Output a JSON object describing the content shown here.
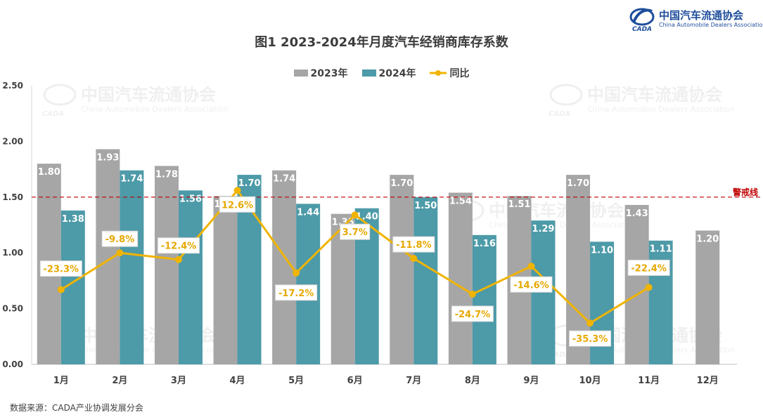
{
  "header": {
    "logo_cn": "中国汽车流通协会",
    "logo_en": "China Automobile Dealers Association",
    "title": "图1  2023-2024年月度汽车经销商库存系数"
  },
  "watermark": {
    "cn": "中国汽车流通协会",
    "en": "China Automobile Dealers Association",
    "mark": "CADA"
  },
  "footer": {
    "source": "数据来源：CADA产业协调发展分会"
  },
  "chart_data": {
    "type": "bar",
    "title": "图1  2023-2024年月度汽车经销商库存系数",
    "categories": [
      "1月",
      "2月",
      "3月",
      "4月",
      "5月",
      "6月",
      "7月",
      "8月",
      "9月",
      "10月",
      "11月",
      "12月"
    ],
    "series": [
      {
        "name": "2023年",
        "type": "bar",
        "color": "#a6a6a6",
        "values": [
          1.8,
          1.93,
          1.78,
          1.51,
          1.74,
          1.35,
          1.7,
          1.54,
          1.51,
          1.7,
          1.43,
          1.2
        ]
      },
      {
        "name": "2024年",
        "type": "bar",
        "color": "#4d9aa8",
        "values": [
          1.38,
          1.74,
          1.56,
          1.7,
          1.44,
          1.4,
          1.5,
          1.16,
          1.29,
          1.1,
          1.11,
          null
        ]
      },
      {
        "name": "同比",
        "type": "line",
        "color": "#f0b400",
        "values": [
          -23.3,
          -9.8,
          -12.4,
          12.6,
          -17.2,
          3.7,
          -11.8,
          -24.7,
          -14.6,
          -35.3,
          -22.4,
          null
        ],
        "labels": [
          "-23.3%",
          "-9.8%",
          "-12.4%",
          "12.6%",
          "-17.2%",
          "3.7%",
          "-11.8%",
          "-24.7%",
          "-14.6%",
          "-35.3%",
          "-22.4%",
          ""
        ],
        "plot_value": [
          0.67,
          1.0,
          0.94,
          1.56,
          0.82,
          1.34,
          0.95,
          0.63,
          0.88,
          0.37,
          0.69,
          null
        ]
      }
    ],
    "ylim": [
      0,
      2.5
    ],
    "yticks": [
      "0.00",
      "0.50",
      "1.00",
      "1.50",
      "2.00",
      "2.50"
    ],
    "reference_line": {
      "value": 1.5,
      "label": "警戒线",
      "color": "#c00000"
    },
    "legend": "top-center",
    "grid": false
  }
}
